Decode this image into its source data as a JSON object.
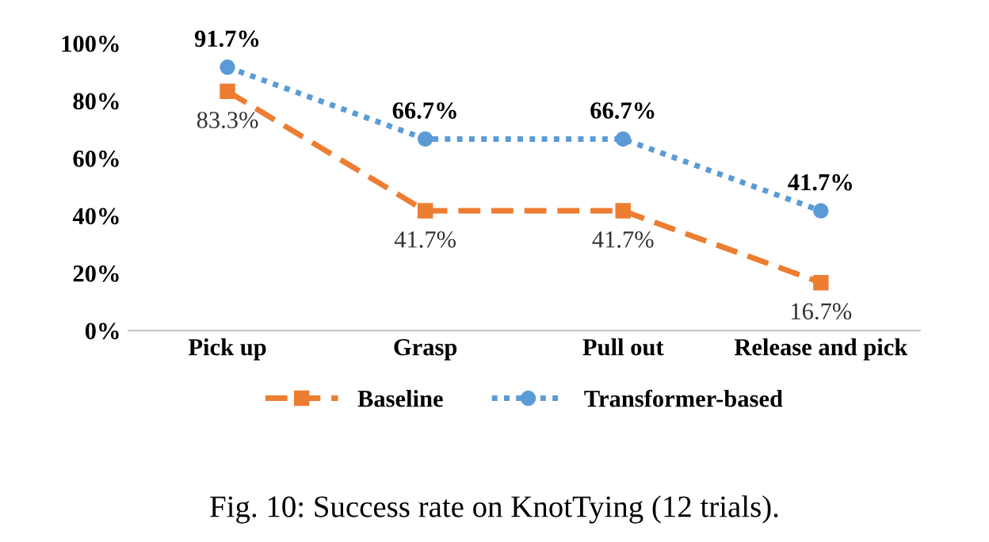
{
  "chart_data": {
    "type": "line",
    "categories": [
      "Pick up",
      "Grasp",
      "Pull out",
      "Release and pick"
    ],
    "series": [
      {
        "name": "Baseline",
        "color": "#ed7d31",
        "values": [
          83.3,
          41.7,
          41.7,
          16.7
        ],
        "marker": "square",
        "line_style": "dashed",
        "value_labels": [
          "83.3%",
          "41.7%",
          "41.7%",
          "16.7%"
        ]
      },
      {
        "name": "Transformer-based",
        "color": "#5b9bd5",
        "values": [
          91.7,
          66.7,
          66.7,
          41.7
        ],
        "marker": "circle",
        "line_style": "dotted",
        "value_labels": [
          "91.7%",
          "66.7%",
          "66.7%",
          "41.7%"
        ]
      }
    ],
    "ylim": [
      0,
      100
    ],
    "yticks": [
      {
        "value": 0,
        "label": "0%"
      },
      {
        "value": 20,
        "label": "20%"
      },
      {
        "value": 40,
        "label": "40%"
      },
      {
        "value": 60,
        "label": "60%"
      },
      {
        "value": 80,
        "label": "80%"
      },
      {
        "value": 100,
        "label": "100%"
      }
    ],
    "grid": false,
    "legend": "bottom",
    "annotations": [
      "Fig. 10: Success rate on KnotTying (12 trials)."
    ]
  }
}
